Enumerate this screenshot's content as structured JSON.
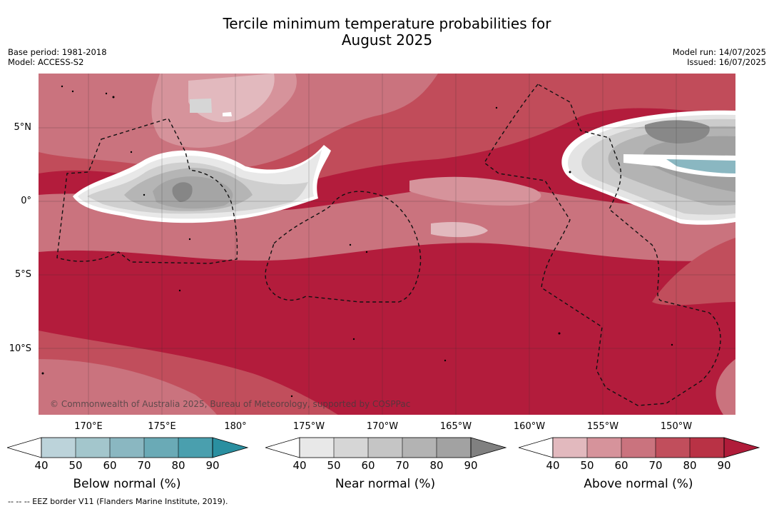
{
  "title": "Tercile minimum temperature probabilities for\nAugust 2025",
  "title_line1": "Tercile minimum temperature probabilities for",
  "title_line2": "August 2025",
  "base_period": "Base period: 1981-2018",
  "model": "Model: ACCESS-S2",
  "model_run": "Model run: 14/07/2025",
  "issued": "Issued: 16/07/2025",
  "latitude_labels": [
    "5°N",
    "0°",
    "5°S",
    "10°S"
  ],
  "longitude_labels": [
    "170°E",
    "175°E",
    "180°",
    "175°W",
    "170°W",
    "165°W",
    "160°W",
    "155°W",
    "150°W"
  ],
  "credit": "© Commonwealth of Australia 2025, Bureau of Meteorology, supported by COSPPac",
  "colorbars": [
    {
      "name": "Below normal (%)",
      "ticks": [
        "40",
        "50",
        "60",
        "70",
        "80",
        "90"
      ],
      "colors": [
        "#ffffff",
        "#bcd3da",
        "#a3c6cc",
        "#8ab7c1",
        "#6aaab6",
        "#4a9fae",
        "#2a8fa0"
      ]
    },
    {
      "name": "Near normal (%)",
      "ticks": [
        "40",
        "50",
        "60",
        "70",
        "80",
        "90"
      ],
      "colors": [
        "#ffffff",
        "#e8e8e8",
        "#d6d6d6",
        "#c5c5c5",
        "#b3b3b3",
        "#a2a2a2",
        "#808080"
      ]
    },
    {
      "name": "Above normal (%)",
      "ticks": [
        "40",
        "50",
        "60",
        "70",
        "80",
        "90"
      ],
      "colors": [
        "#ffffff",
        "#e2b9be",
        "#d6939b",
        "#ca737e",
        "#c14e5c",
        "#b93245",
        "#b01c3a"
      ]
    }
  ],
  "footnote": "--  --  -- EEZ border V11 (Flanders Marine Institute, 2019).",
  "map": {
    "lat_range": [
      "14°S",
      "8.5°N"
    ],
    "lon_range": [
      "167°E",
      "144°W"
    ],
    "grid": true
  }
}
